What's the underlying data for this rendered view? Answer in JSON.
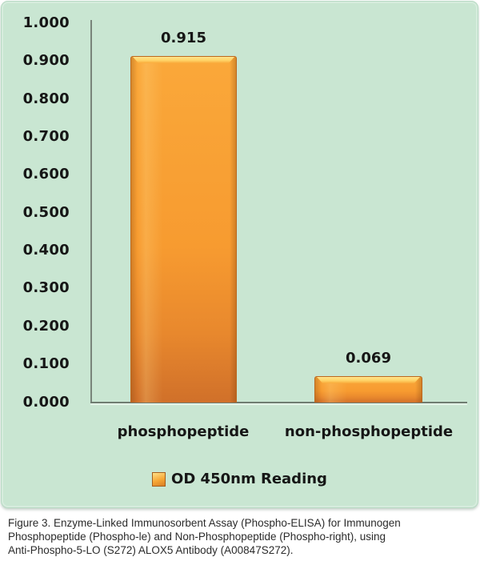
{
  "chart_data": {
    "type": "bar",
    "categories": [
      "phosphopeptide",
      "non-phosphopeptide"
    ],
    "values": [
      0.915,
      0.069
    ],
    "value_labels": [
      "0.915",
      "0.069"
    ],
    "ytick_labels": [
      "1.000",
      "0.900",
      "0.800",
      "0.700",
      "0.600",
      "0.500",
      "0.400",
      "0.300",
      "0.200",
      "0.100",
      "0.000"
    ],
    "ylim": [
      0,
      1.0
    ],
    "grid": false,
    "legend": {
      "label": "OD 450nm Reading",
      "position": "bottom"
    },
    "bar_color": "#F79B30"
  },
  "colors": {
    "panel_background": "#C9E6D2",
    "bar_fill": "#F79B30",
    "bar_bevel_highlight": "#FFE48C",
    "bar_bottom_shade": "#D0702A",
    "axis_line": "#6F7C71",
    "text": "#161616"
  },
  "caption": {
    "lines": [
      "Figure 3. Enzyme-Linked Immunosorbent Assay (Phospho-ELISA) for Immunogen",
      "Phosphopeptide (Phospho-le) and Non-Phosphopeptide (Phospho-right), using",
      "Anti-Phospho-5-LO (S272) ALOX5 Antibody (A00847S272)."
    ]
  }
}
